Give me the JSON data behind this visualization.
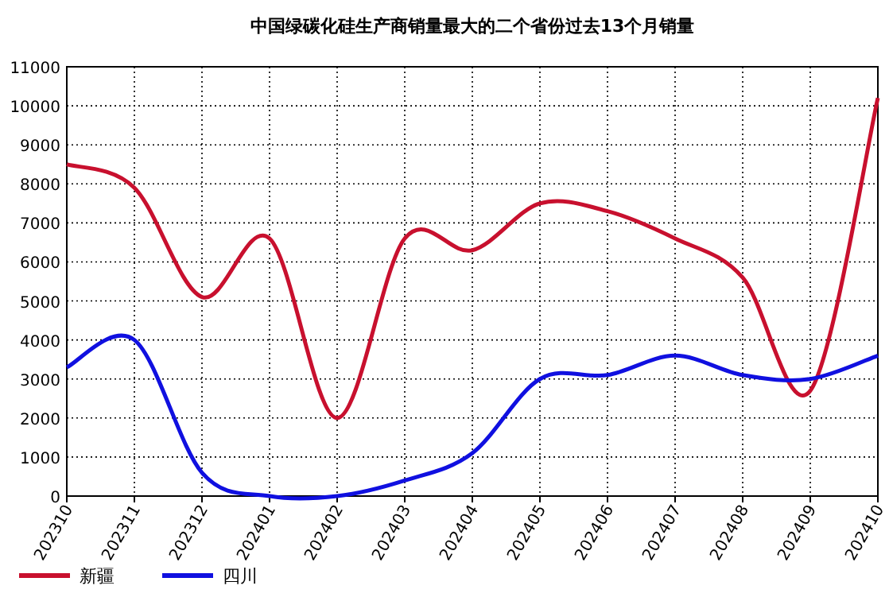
{
  "chart_data": {
    "type": "line",
    "title": "中国绿碳化硅生产商销量最大的二个省份过去13个月销量",
    "categories": [
      "202310",
      "202311",
      "202312",
      "202401",
      "202402",
      "202403",
      "202404",
      "202405",
      "202406",
      "202407",
      "202408",
      "202409",
      "202410"
    ],
    "series": [
      {
        "name": "新疆",
        "color": "#c8102e",
        "values": [
          8500,
          7900,
          5100,
          6600,
          2000,
          6600,
          6300,
          7500,
          7300,
          6600,
          5600,
          2700,
          10200
        ]
      },
      {
        "name": "四川",
        "color": "#1010e0",
        "values": [
          3300,
          4000,
          600,
          0,
          0,
          400,
          1100,
          3000,
          3100,
          3600,
          3100,
          3000,
          3600
        ]
      }
    ],
    "ylim": [
      0,
      11000
    ],
    "yticks": [
      0,
      1000,
      2000,
      3000,
      4000,
      5000,
      6000,
      7000,
      8000,
      9000,
      10000,
      11000
    ],
    "grid": true,
    "legend": "bottom left"
  }
}
